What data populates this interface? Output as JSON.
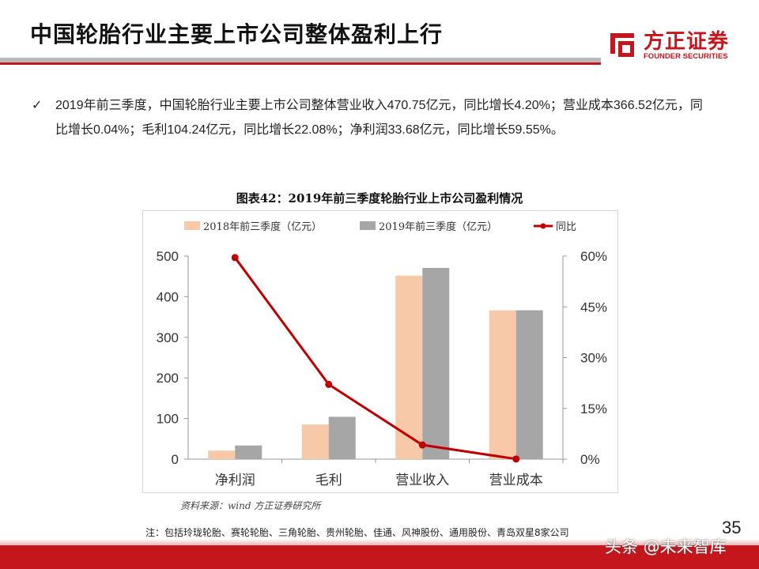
{
  "header": {
    "title": "中国轮胎行业主要上市公司整体盈利上行",
    "logo_cn": "方正证券",
    "logo_en": "FOUNDER SECURITIES"
  },
  "bullet": {
    "mark": "✓",
    "text": "2019年前三季度，中国轮胎行业主要上市公司整体营业收入470.75亿元，同比增长4.20%；营业成本366.52亿元，同比增长0.04%；毛利104.24亿元，同比增长22.08%；净利润33.68亿元，同比增长59.55%。"
  },
  "chart_data": {
    "type": "bar",
    "title": "图表42：2019年前三季度轮胎行业上市公司盈利情况",
    "categories": [
      "净利润",
      "毛利",
      "营业收入",
      "营业成本"
    ],
    "series": [
      {
        "name": "2018年前三季度（亿元）",
        "values": [
          21.11,
          85.38,
          451.77,
          366.37
        ],
        "color": "#f8c9a9",
        "axis": "left"
      },
      {
        "name": "2019年前三季度（亿元）",
        "values": [
          33.68,
          104.24,
          470.75,
          366.52
        ],
        "color": "#a6a6a6",
        "axis": "left"
      }
    ],
    "line": {
      "name": "同比",
      "values": [
        59.55,
        22.08,
        4.2,
        0.04
      ],
      "color": "#c00000",
      "axis": "right"
    },
    "yleft": {
      "min": 0,
      "max": 500,
      "ticks": [
        0,
        100,
        200,
        300,
        400,
        500
      ]
    },
    "yright": {
      "min": 0,
      "max": 60,
      "ticks": [
        0,
        15,
        30,
        45,
        60
      ],
      "suffix": "%"
    },
    "legend": "top",
    "grid": false
  },
  "source": "资料来源：wind 方正证券研究所",
  "note": "注：包括玲珑轮胎、赛轮轮胎、三角轮胎、贵州轮胎、佳通、风神股份、通用股份、青岛双星8家公司",
  "page_number": "35",
  "watermark": "头条 @未来智库"
}
